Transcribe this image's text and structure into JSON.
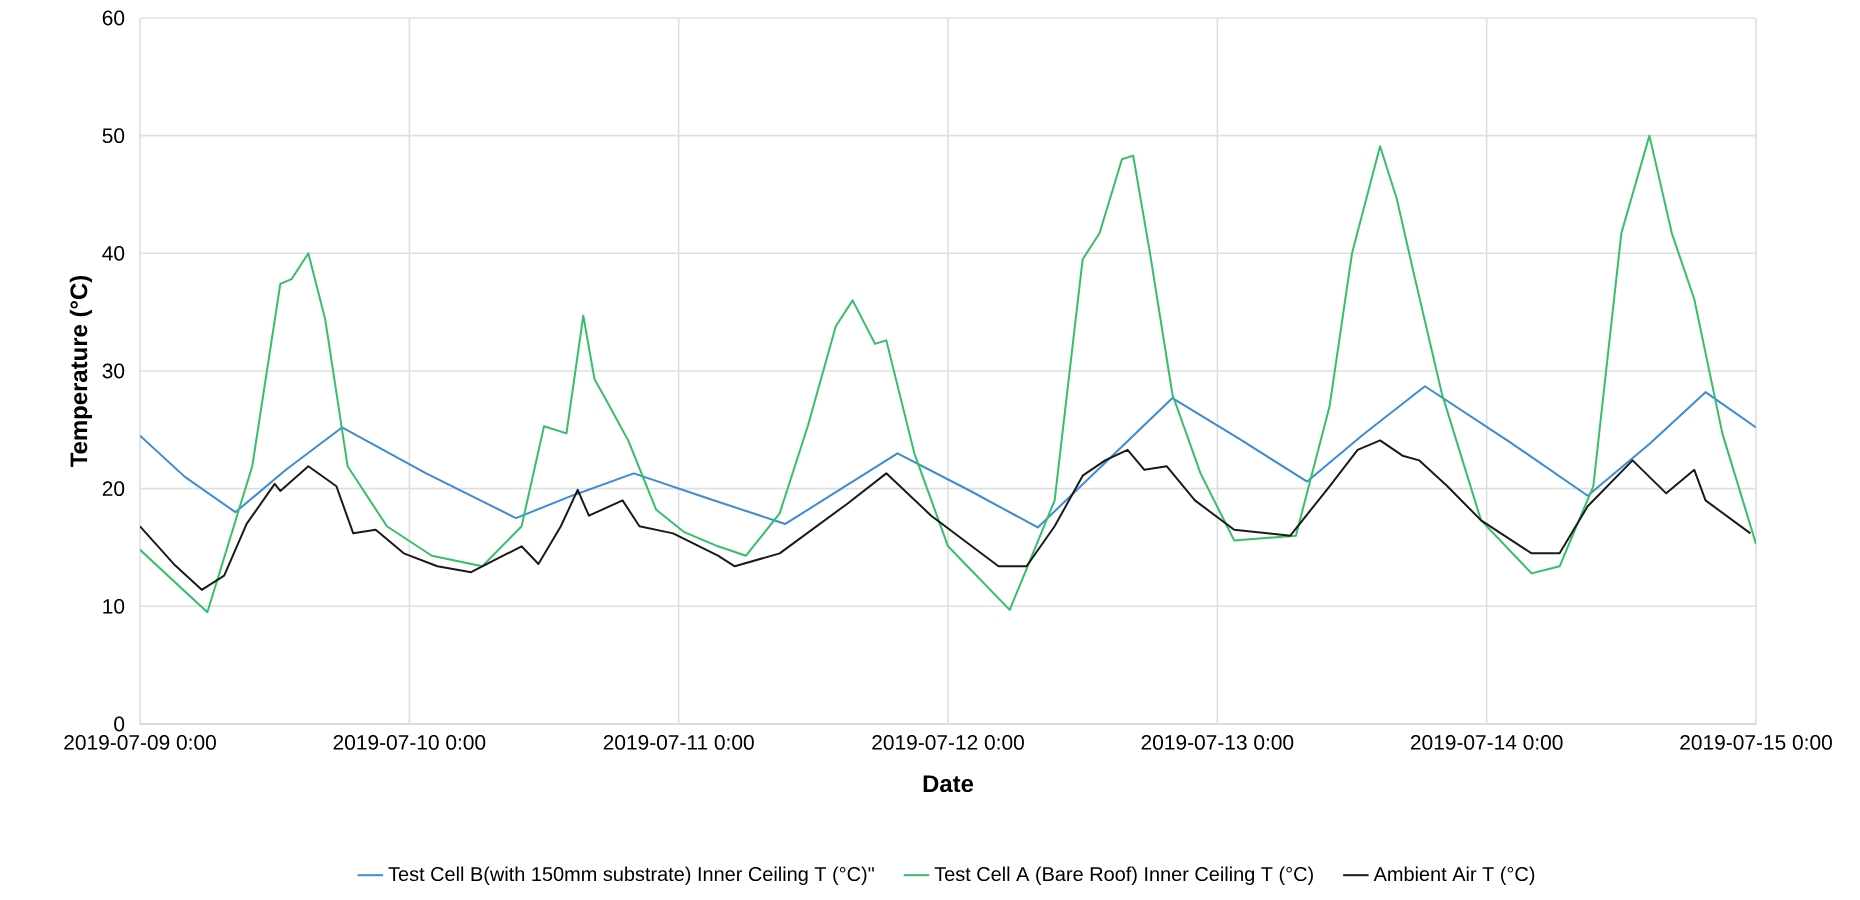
{
  "chart_data": {
    "type": "line",
    "xlabel": "Date",
    "ylabel": "Temperature (°C)",
    "xlim": [
      "2019-07-09T00:00",
      "2019-07-15T00:00"
    ],
    "xticks": [
      {
        "value": "2019-07-09T00:00",
        "label": "2019-07-09 0:00"
      },
      {
        "value": "2019-07-10T00:00",
        "label": "2019-07-10 0:00"
      },
      {
        "value": "2019-07-11T00:00",
        "label": "2019-07-11 0:00"
      },
      {
        "value": "2019-07-12T00:00",
        "label": "2019-07-12 0:00"
      },
      {
        "value": "2019-07-13T00:00",
        "label": "2019-07-13 0:00"
      },
      {
        "value": "2019-07-14T00:00",
        "label": "2019-07-14 0:00"
      },
      {
        "value": "2019-07-15T00:00",
        "label": "2019-07-15 0:00"
      }
    ],
    "ylim": [
      0,
      60
    ],
    "yticks": [
      0,
      10,
      20,
      30,
      40,
      50,
      60
    ],
    "grid": true,
    "legend": "bottom",
    "marker": "none",
    "line_style": "solid",
    "series": [
      {
        "name": "Test Cell B(with 150mm substrate) Inner Ceiling T (°C)\"",
        "color": "#3d8bd6",
        "x": [
          "2019-07-09T00:00",
          "2019-07-09T04:00",
          "2019-07-09T08:30",
          "2019-07-09T13:00",
          "2019-07-09T18:00",
          "2019-07-10T01:30",
          "2019-07-10T09:30",
          "2019-07-10T14:30",
          "2019-07-10T20:00",
          "2019-07-11T02:30",
          "2019-07-11T09:30",
          "2019-07-11T14:30",
          "2019-07-11T19:30",
          "2019-07-12T02:00",
          "2019-07-12T08:00",
          "2019-07-12T14:00",
          "2019-07-12T20:00",
          "2019-07-13T02:00",
          "2019-07-13T08:00",
          "2019-07-13T13:00",
          "2019-07-13T18:30",
          "2019-07-14T02:00",
          "2019-07-14T09:00",
          "2019-07-14T14:30",
          "2019-07-14T19:30",
          "2019-07-15T00:00"
        ],
        "values": [
          24.5,
          21.0,
          18.0,
          21.6,
          25.2,
          21.3,
          17.5,
          19.4,
          21.3,
          19.2,
          17.0,
          20.0,
          23.0,
          19.8,
          16.7,
          22.2,
          27.7,
          24.2,
          20.6,
          24.6,
          28.7,
          24.0,
          19.4,
          23.8,
          28.2,
          25.2
        ]
      },
      {
        "name": "Test Cell A (Bare Roof) Inner Ceiling T (°C)",
        "color": "#35bf68",
        "x": [
          "2019-07-09T00:00",
          "2019-07-09T06:00",
          "2019-07-09T10:00",
          "2019-07-09T12:30",
          "2019-07-09T13:30",
          "2019-07-09T15:00",
          "2019-07-09T16:30",
          "2019-07-09T18:30",
          "2019-07-09T22:00",
          "2019-07-10T02:00",
          "2019-07-10T06:30",
          "2019-07-10T10:00",
          "2019-07-10T12:00",
          "2019-07-10T14:00",
          "2019-07-10T15:30",
          "2019-07-10T16:30",
          "2019-07-10T17:30",
          "2019-07-10T19:30",
          "2019-07-10T22:00",
          "2019-07-11T00:30",
          "2019-07-11T03:30",
          "2019-07-11T06:00",
          "2019-07-11T09:00",
          "2019-07-11T11:30",
          "2019-07-11T14:00",
          "2019-07-11T15:30",
          "2019-07-11T17:30",
          "2019-07-11T18:30",
          "2019-07-11T21:00",
          "2019-07-12T00:00",
          "2019-07-12T05:30",
          "2019-07-12T09:30",
          "2019-07-12T12:00",
          "2019-07-12T13:30",
          "2019-07-12T15:30",
          "2019-07-12T16:30",
          "2019-07-12T18:00",
          "2019-07-12T20:00",
          "2019-07-12T22:30",
          "2019-07-13T01:30",
          "2019-07-13T07:00",
          "2019-07-13T10:00",
          "2019-07-13T12:00",
          "2019-07-13T14:30",
          "2019-07-13T16:00",
          "2019-07-13T17:30",
          "2019-07-13T20:00",
          "2019-07-13T23:30",
          "2019-07-14T04:00",
          "2019-07-14T06:30",
          "2019-07-14T09:30",
          "2019-07-14T12:00",
          "2019-07-14T14:30",
          "2019-07-14T16:30",
          "2019-07-14T18:30",
          "2019-07-14T21:00",
          "2019-07-15T00:00"
        ],
        "values": [
          14.8,
          9.5,
          21.9,
          37.4,
          37.8,
          40.0,
          34.4,
          21.9,
          16.8,
          14.3,
          13.4,
          16.8,
          25.3,
          24.7,
          34.7,
          29.3,
          27.6,
          24.1,
          18.2,
          16.3,
          15.1,
          14.3,
          17.9,
          25.3,
          33.8,
          36.0,
          32.3,
          32.6,
          23.0,
          15.1,
          9.7,
          19.0,
          39.5,
          41.7,
          48.0,
          48.3,
          40.0,
          28.0,
          21.3,
          15.6,
          16.0,
          27.0,
          40.0,
          49.1,
          44.6,
          38.3,
          28.1,
          17.3,
          12.8,
          13.4,
          20.2,
          41.7,
          50.0,
          41.7,
          36.1,
          24.7,
          15.3
        ]
      },
      {
        "name": "Ambient Air T (°C)",
        "color": "#1a1a1a",
        "x": [
          "2019-07-09T00:00",
          "2019-07-09T03:00",
          "2019-07-09T05:30",
          "2019-07-09T07:30",
          "2019-07-09T09:30",
          "2019-07-09T12:00",
          "2019-07-09T12:30",
          "2019-07-09T15:00",
          "2019-07-09T17:30",
          "2019-07-09T19:00",
          "2019-07-09T21:00",
          "2019-07-09T23:30",
          "2019-07-10T02:30",
          "2019-07-10T05:30",
          "2019-07-10T10:00",
          "2019-07-10T11:30",
          "2019-07-10T13:30",
          "2019-07-10T15:00",
          "2019-07-10T16:00",
          "2019-07-10T19:00",
          "2019-07-10T20:30",
          "2019-07-10T23:30",
          "2019-07-11T03:30",
          "2019-07-11T05:00",
          "2019-07-11T09:00",
          "2019-07-11T15:00",
          "2019-07-11T18:30",
          "2019-07-11T22:30",
          "2019-07-12T04:30",
          "2019-07-12T07:00",
          "2019-07-12T09:30",
          "2019-07-12T12:00",
          "2019-07-12T14:00",
          "2019-07-12T16:00",
          "2019-07-12T17:30",
          "2019-07-12T19:30",
          "2019-07-12T22:00",
          "2019-07-13T01:30",
          "2019-07-13T06:30",
          "2019-07-13T10:00",
          "2019-07-13T12:30",
          "2019-07-13T14:30",
          "2019-07-13T16:30",
          "2019-07-13T18:00",
          "2019-07-13T20:30",
          "2019-07-13T23:30",
          "2019-07-14T04:00",
          "2019-07-14T06:30",
          "2019-07-14T09:00",
          "2019-07-14T13:00",
          "2019-07-14T16:00",
          "2019-07-14T18:30",
          "2019-07-14T19:30",
          "2019-07-14T23:30"
        ],
        "values": [
          16.8,
          13.6,
          11.4,
          12.6,
          17.0,
          20.4,
          19.8,
          21.9,
          20.2,
          16.2,
          16.5,
          14.5,
          13.4,
          12.9,
          15.1,
          13.6,
          16.8,
          19.9,
          17.7,
          19.0,
          16.8,
          16.2,
          14.3,
          13.4,
          14.5,
          18.7,
          21.3,
          17.7,
          13.4,
          13.4,
          16.8,
          21.1,
          22.4,
          23.3,
          21.6,
          21.9,
          19.0,
          16.5,
          16.0,
          20.2,
          23.3,
          24.1,
          22.8,
          22.4,
          20.2,
          17.3,
          14.5,
          14.5,
          18.5,
          22.4,
          19.6,
          21.6,
          19.0,
          16.2
        ]
      }
    ]
  }
}
